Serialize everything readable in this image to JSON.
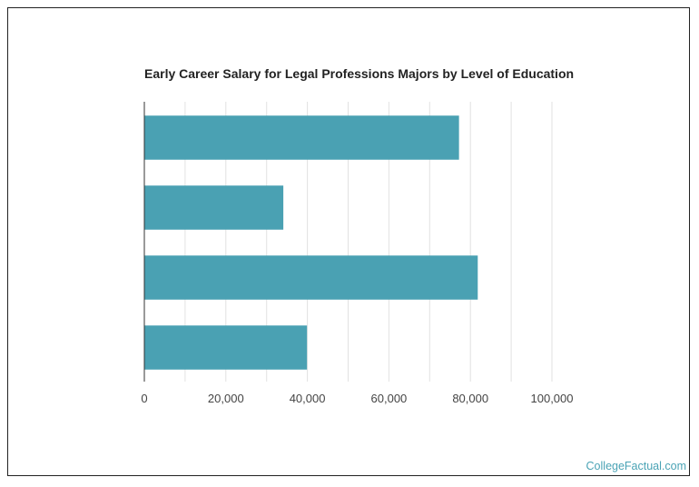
{
  "brand": {
    "watermark": "CollegeFactual.com",
    "bar_color": "#4aa1b3"
  },
  "chart_data": {
    "type": "bar",
    "orientation": "horizontal",
    "title": "Early Career Salary for Legal Professions Majors by Level of Education",
    "categories": [
      "",
      "",
      "",
      ""
    ],
    "values": [
      77200,
      34100,
      81800,
      39900
    ],
    "xlim": [
      0,
      100000
    ],
    "xticks": [
      0,
      20000,
      40000,
      60000,
      80000,
      100000
    ],
    "xtick_labels": [
      "0",
      "20,000",
      "40,000",
      "60,000",
      "80,000",
      "100,000"
    ],
    "xlabel": "",
    "ylabel": "",
    "grid": true
  }
}
